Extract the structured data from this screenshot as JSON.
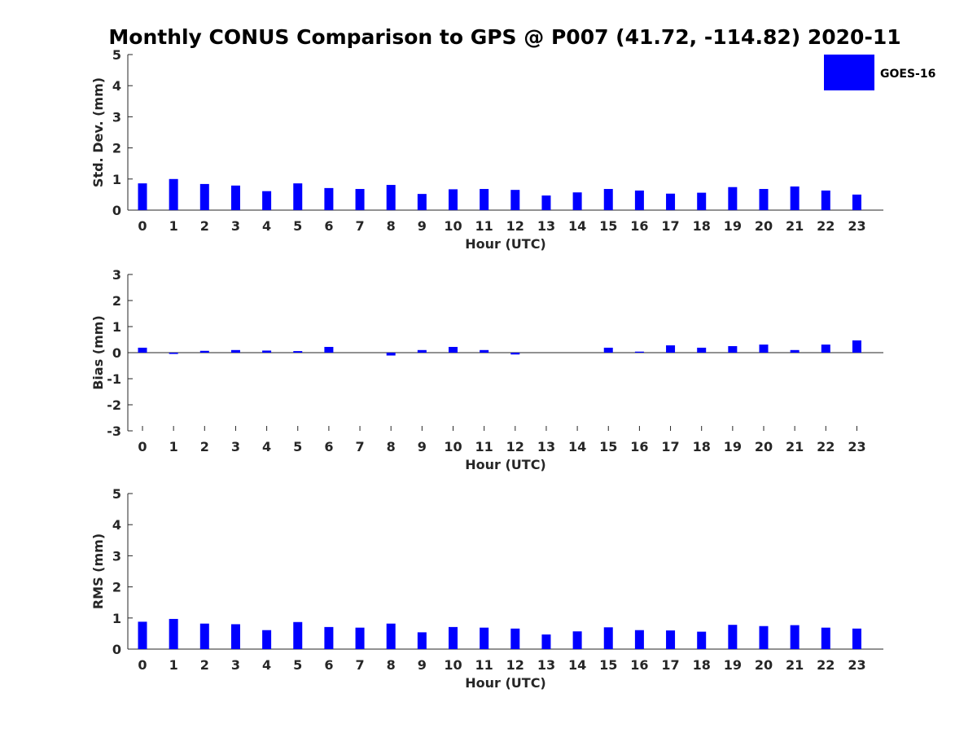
{
  "title": "Monthly CONUS Comparison to GPS @ P007 (41.72, -114.82) 2020-11",
  "legend": {
    "label": "GOES-16",
    "color": "#0000ff"
  },
  "chart_data": [
    {
      "type": "bar",
      "xlabel": "Hour (UTC)",
      "ylabel": "Std. Dev. (mm)",
      "ylim": [
        0,
        5
      ],
      "yticks": [
        0,
        1,
        2,
        3,
        4,
        5
      ],
      "categories": [
        "0",
        "1",
        "2",
        "3",
        "4",
        "5",
        "6",
        "7",
        "8",
        "9",
        "10",
        "11",
        "12",
        "13",
        "14",
        "15",
        "16",
        "17",
        "18",
        "19",
        "20",
        "21",
        "22",
        "23"
      ],
      "series": [
        {
          "name": "GOES-16",
          "color": "#0000ff",
          "values": [
            0.86,
            1.0,
            0.84,
            0.79,
            0.61,
            0.86,
            0.71,
            0.68,
            0.81,
            0.52,
            0.67,
            0.68,
            0.65,
            0.47,
            0.57,
            0.68,
            0.63,
            0.53,
            0.56,
            0.74,
            0.68,
            0.76,
            0.63,
            0.5
          ]
        }
      ]
    },
    {
      "type": "bar",
      "xlabel": "Hour (UTC)",
      "ylabel": "Bias (mm)",
      "ylim": [
        -3,
        3
      ],
      "yticks": [
        -3,
        -2,
        -1,
        0,
        1,
        2,
        3
      ],
      "categories": [
        "0",
        "1",
        "2",
        "3",
        "4",
        "5",
        "6",
        "7",
        "8",
        "9",
        "10",
        "11",
        "12",
        "13",
        "14",
        "15",
        "16",
        "17",
        "18",
        "19",
        "20",
        "21",
        "22",
        "23"
      ],
      "series": [
        {
          "name": "GOES-16",
          "color": "#0000ff",
          "values": [
            0.19,
            -0.05,
            0.07,
            0.1,
            0.08,
            0.06,
            0.22,
            0.0,
            -0.11,
            0.1,
            0.22,
            0.1,
            -0.07,
            0.0,
            0.0,
            0.19,
            0.04,
            0.28,
            0.19,
            0.25,
            0.31,
            0.1,
            0.31,
            0.47
          ]
        }
      ]
    },
    {
      "type": "bar",
      "xlabel": "Hour (UTC)",
      "ylabel": "RMS (mm)",
      "ylim": [
        0,
        5
      ],
      "yticks": [
        0,
        1,
        2,
        3,
        4,
        5
      ],
      "categories": [
        "0",
        "1",
        "2",
        "3",
        "4",
        "5",
        "6",
        "7",
        "8",
        "9",
        "10",
        "11",
        "12",
        "13",
        "14",
        "15",
        "16",
        "17",
        "18",
        "19",
        "20",
        "21",
        "22",
        "23"
      ],
      "series": [
        {
          "name": "GOES-16",
          "color": "#0000ff",
          "values": [
            0.88,
            0.97,
            0.82,
            0.8,
            0.61,
            0.87,
            0.71,
            0.69,
            0.82,
            0.54,
            0.71,
            0.69,
            0.66,
            0.47,
            0.57,
            0.7,
            0.61,
            0.6,
            0.56,
            0.78,
            0.74,
            0.77,
            0.69,
            0.66
          ]
        }
      ]
    }
  ]
}
